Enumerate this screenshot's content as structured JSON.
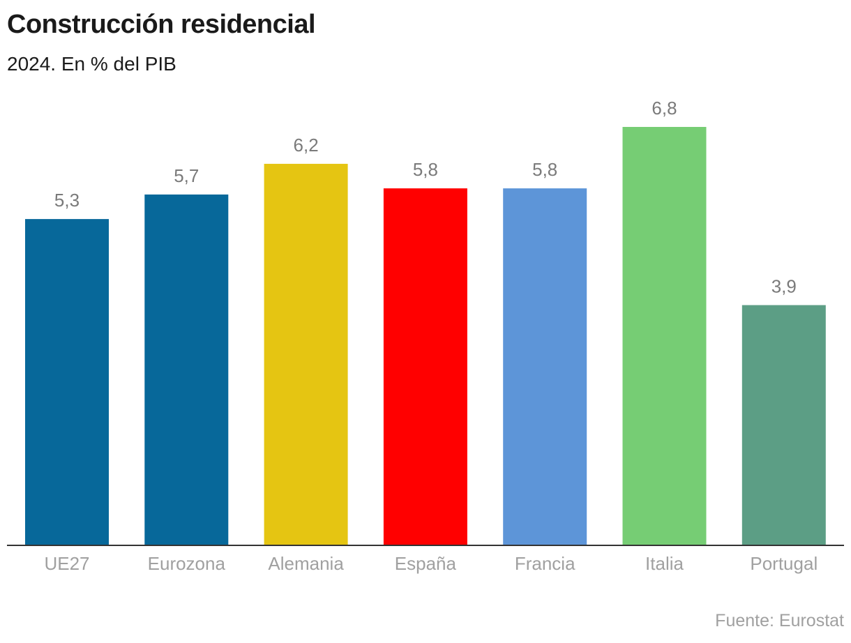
{
  "chart_data": {
    "type": "bar",
    "title": "Construcción residencial",
    "subtitle": "2024. En % del PIB",
    "xlabel": "",
    "ylabel": "",
    "ylim": [
      0,
      6.8
    ],
    "grid": false,
    "categories": [
      "UE27",
      "Eurozona",
      "Alemania",
      "España",
      "Francia",
      "Italia",
      "Portugal"
    ],
    "values": [
      5.3,
      5.7,
      6.2,
      5.8,
      5.8,
      6.8,
      3.9
    ],
    "value_labels": [
      "5,3",
      "5,7",
      "6,2",
      "5,8",
      "5,8",
      "6,8",
      "3,9"
    ],
    "colors": [
      "#07689a",
      "#07689a",
      "#e5c512",
      "#ff0000",
      "#5d95d8",
      "#76cd74",
      "#5c9e85"
    ],
    "source": "Fuente: Eurostat"
  },
  "style": {
    "label_color": "#7a7a7a",
    "category_color": "#a0a0a0",
    "axis_color": "#333333"
  }
}
